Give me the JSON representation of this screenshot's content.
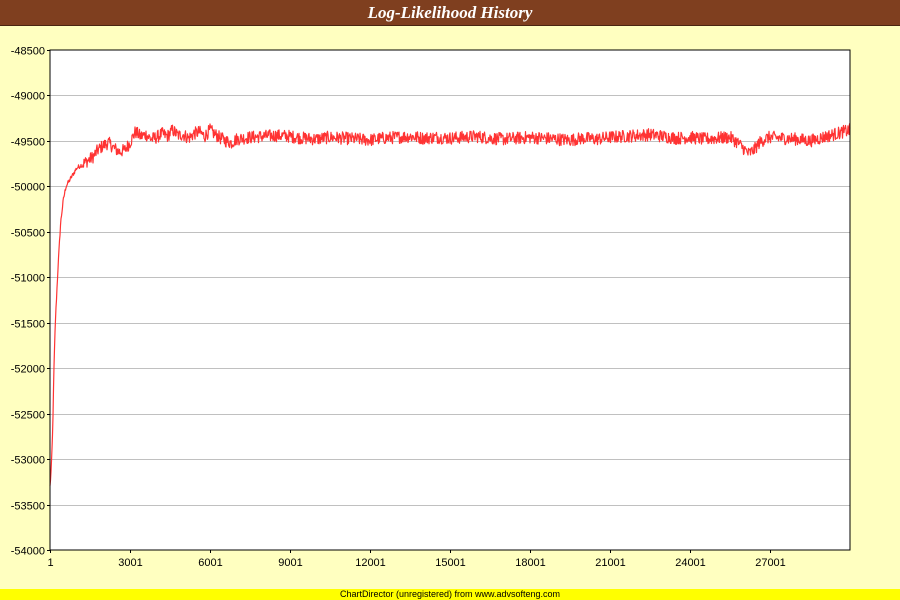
{
  "chart_data": {
    "type": "line",
    "title": "Log-Likelihood History",
    "xlabel": "",
    "ylabel": "",
    "x_ticks": [
      "1",
      "3001",
      "6001",
      "9001",
      "12001",
      "15001",
      "18001",
      "21001",
      "24001",
      "27001"
    ],
    "x_range": [
      1,
      30001
    ],
    "y_ticks": [
      "-48500",
      "-49000",
      "-49500",
      "-50000",
      "-50500",
      "-51000",
      "-51500",
      "-52000",
      "-52500",
      "-53000",
      "-53500",
      "-54000"
    ],
    "ylim": [
      -54000,
      -48500
    ],
    "grid": true,
    "legend": "none",
    "series": [
      {
        "color": "#ff3333",
        "x": [
          1,
          50,
          100,
          150,
          200,
          300,
          400,
          500,
          600,
          700,
          800,
          900,
          1000,
          1200,
          1400,
          1600,
          1800,
          2000,
          2200,
          2400,
          2600,
          2800,
          3000,
          3200,
          3400,
          3600,
          3800,
          4000,
          4200,
          4400,
          4600,
          4800,
          5000,
          5200,
          5400,
          5600,
          5800,
          6000,
          6200,
          6400,
          6600,
          6800,
          7000,
          7500,
          8000,
          8500,
          9000,
          9500,
          10000,
          10500,
          11000,
          11500,
          12000,
          12500,
          13000,
          13500,
          14000,
          14500,
          15000,
          15500,
          16000,
          16500,
          17000,
          17500,
          18000,
          18500,
          19000,
          19500,
          20000,
          20500,
          21000,
          21500,
          22000,
          22500,
          23000,
          23500,
          24000,
          24500,
          25000,
          25500,
          25800,
          26000,
          26200,
          26400,
          26600,
          26800,
          27000,
          27500,
          28000,
          28500,
          29000,
          29500,
          30000
        ],
        "values": [
          -53300,
          -53100,
          -52700,
          -52000,
          -51500,
          -50900,
          -50400,
          -50150,
          -50000,
          -49950,
          -49900,
          -49850,
          -49800,
          -49760,
          -49720,
          -49680,
          -49600,
          -49550,
          -49520,
          -49580,
          -49620,
          -49600,
          -49520,
          -49400,
          -49450,
          -49430,
          -49480,
          -49460,
          -49420,
          -49450,
          -49380,
          -49440,
          -49430,
          -49470,
          -49420,
          -49400,
          -49450,
          -49380,
          -49430,
          -49470,
          -49500,
          -49520,
          -49480,
          -49460,
          -49450,
          -49440,
          -49450,
          -49470,
          -49480,
          -49460,
          -49470,
          -49480,
          -49490,
          -49470,
          -49460,
          -49450,
          -49470,
          -49460,
          -49470,
          -49460,
          -49450,
          -49470,
          -49480,
          -49470,
          -49460,
          -49470,
          -49480,
          -49490,
          -49470,
          -49480,
          -49460,
          -49450,
          -49440,
          -49430,
          -49450,
          -49470,
          -49460,
          -49480,
          -49470,
          -49460,
          -49520,
          -49580,
          -49640,
          -49600,
          -49520,
          -49480,
          -49460,
          -49470,
          -49480,
          -49500,
          -49460,
          -49420,
          -49380
        ]
      }
    ]
  },
  "footer": {
    "credit": "ChartDirector (unregistered) from www.advsofteng.com"
  }
}
